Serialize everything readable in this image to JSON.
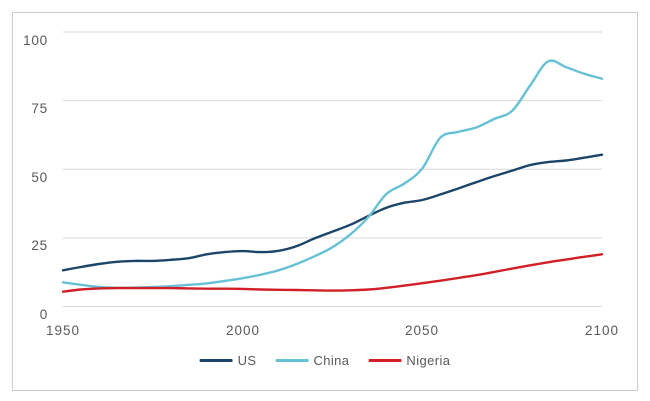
{
  "chart_data": {
    "type": "line",
    "title": "",
    "xlabel": "",
    "ylabel": "",
    "xlim": [
      1950,
      2100
    ],
    "ylim": [
      0,
      100
    ],
    "x_ticks": [
      1950,
      2000,
      2050,
      2100
    ],
    "y_ticks": [
      0,
      25,
      50,
      75,
      100
    ],
    "grid": "horizontal",
    "legend_position": "bottom-center",
    "x": [
      1950,
      1955,
      1960,
      1965,
      1970,
      1975,
      1980,
      1985,
      1990,
      1995,
      2000,
      2005,
      2010,
      2015,
      2020,
      2025,
      2030,
      2035,
      2040,
      2045,
      2050,
      2055,
      2060,
      2065,
      2070,
      2075,
      2080,
      2085,
      2090,
      2095,
      2100
    ],
    "series": [
      {
        "name": "US",
        "color": "#1B4569",
        "values": [
          13.2,
          14.4,
          15.5,
          16.3,
          16.6,
          16.6,
          17.0,
          17.6,
          19.0,
          19.8,
          20.2,
          19.8,
          20.3,
          22.0,
          24.8,
          27.3,
          29.8,
          33.0,
          36.0,
          37.8,
          38.8,
          40.8,
          43.0,
          45.3,
          47.5,
          49.5,
          51.5,
          52.6,
          53.2,
          54.2,
          55.3
        ]
      },
      {
        "name": "China",
        "color": "#67C1D5",
        "values": [
          8.8,
          7.9,
          7.1,
          6.8,
          6.9,
          7.1,
          7.4,
          7.9,
          8.4,
          9.3,
          10.3,
          11.6,
          13.2,
          15.5,
          18.3,
          21.6,
          26.3,
          32.6,
          41.0,
          44.8,
          50.3,
          61.5,
          63.6,
          65.2,
          68.3,
          71.3,
          80.5,
          89.3,
          87.2,
          84.8,
          83.0
        ]
      },
      {
        "name": "Nigeria",
        "color": "#D21F27",
        "values": [
          5.4,
          6.2,
          6.6,
          6.7,
          6.7,
          6.7,
          6.7,
          6.6,
          6.5,
          6.5,
          6.4,
          6.2,
          6.1,
          6.0,
          5.9,
          5.8,
          5.9,
          6.2,
          6.8,
          7.6,
          8.5,
          9.4,
          10.4,
          11.4,
          12.6,
          13.8,
          15.0,
          16.1,
          17.1,
          18.1,
          19.0
        ]
      }
    ]
  },
  "colors": {
    "background": "#FFFFFF",
    "frame_border": "#CCCCCC",
    "gridline": "#D9D9D9",
    "tick_text": "#595959"
  }
}
